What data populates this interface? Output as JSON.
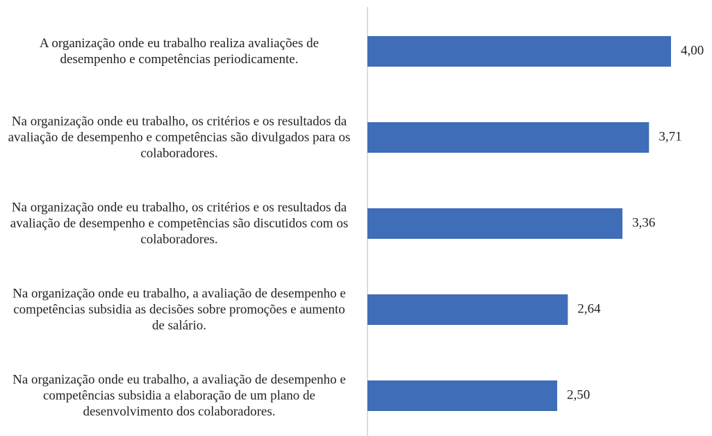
{
  "chart_data": {
    "type": "bar",
    "orientation": "horizontal",
    "categories": [
      "A organização onde eu trabalho realiza avaliações de desempenho e competências periodicamente.",
      "Na organização onde eu trabalho, os critérios e os resultados da avaliação de desempenho e competências são divulgados para os colaboradores.",
      "Na organização onde eu trabalho, os critérios e os resultados da avaliação de desempenho e competências são discutidos com os colaboradores.",
      "Na organização onde eu trabalho, a avaliação de desempenho e competências subsidia as decisões sobre promoções e aumento de salário.",
      "Na organização onde eu trabalho, a avaliação de desempenho e competências subsidia a elaboração de um plano de desenvolvimento dos colaboradores."
    ],
    "values": [
      4,
      3.71,
      3.36,
      2.64,
      2.5
    ],
    "value_labels": [
      "4,00",
      "3,71",
      "3,36",
      "2,64",
      "2,50"
    ],
    "color": "#3f6db7",
    "xlim": [
      0,
      4
    ]
  }
}
